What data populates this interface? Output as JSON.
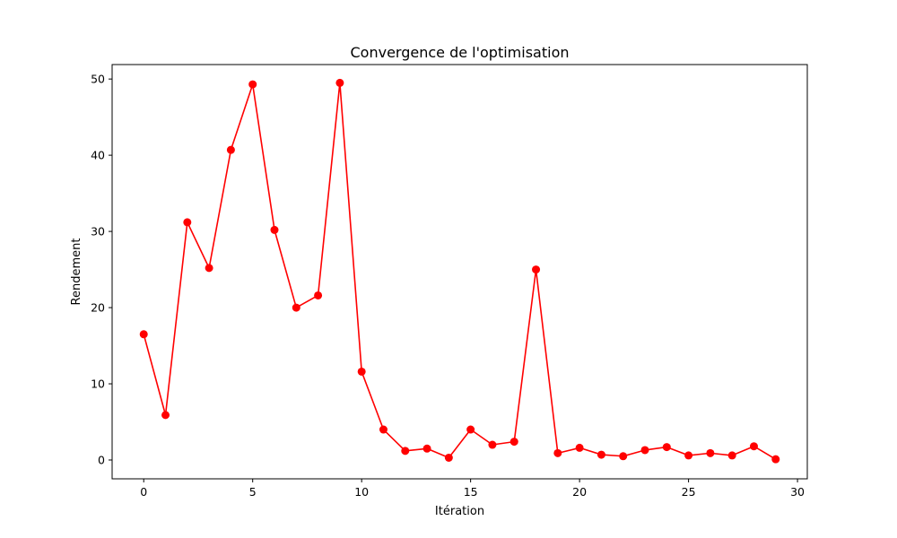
{
  "chart_data": {
    "type": "line",
    "title": "Convergence de l'optimisation",
    "xlabel": "Itération",
    "ylabel": "Rendement",
    "xlim": [
      -1.45,
      30.45
    ],
    "ylim": [
      -2.47,
      51.9
    ],
    "xticks": [
      0,
      5,
      10,
      15,
      20,
      25,
      30
    ],
    "yticks": [
      0,
      10,
      20,
      30,
      40,
      50
    ],
    "grid": false,
    "series": [
      {
        "color": "#ff0000",
        "marker": "circle",
        "x": [
          0,
          1,
          2,
          3,
          4,
          5,
          6,
          7,
          8,
          9,
          10,
          11,
          12,
          13,
          14,
          15,
          16,
          17,
          18,
          19,
          20,
          21,
          22,
          23,
          24,
          25,
          26,
          27,
          28,
          29
        ],
        "y": [
          16.5,
          5.9,
          31.2,
          25.2,
          40.7,
          49.3,
          30.2,
          20.0,
          21.6,
          49.5,
          11.6,
          4.0,
          1.2,
          1.5,
          0.3,
          4.0,
          2.0,
          2.4,
          25.0,
          0.9,
          1.6,
          0.7,
          0.5,
          1.3,
          1.7,
          0.6,
          0.9,
          0.6,
          1.8,
          0.1
        ]
      }
    ]
  }
}
